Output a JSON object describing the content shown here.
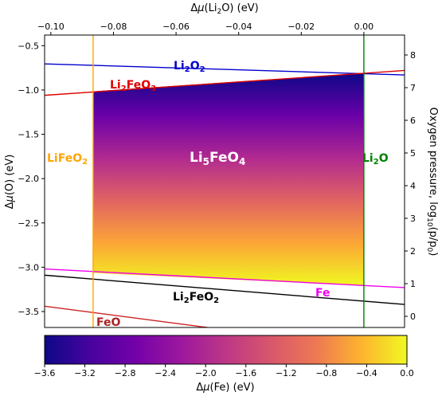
{
  "chart_data": {
    "type": "phase-diagram",
    "top_axis": {
      "label_parts": [
        "Δ",
        "μ",
        "(Li",
        "2",
        "O) (eV)"
      ],
      "xlim": [
        -0.102,
        0.013
      ],
      "ticks": [
        -0.1,
        -0.08,
        -0.06,
        -0.04,
        -0.02,
        0.0
      ],
      "tick_labels": [
        "−0.10",
        "−0.08",
        "−0.06",
        "−0.04",
        "−0.02",
        "0.00"
      ]
    },
    "left_axis": {
      "label_parts": [
        "Δ",
        "μ",
        "(O) (eV)"
      ],
      "ylim": [
        -3.68,
        -0.38
      ],
      "ticks": [
        -3.5,
        -3.0,
        -2.5,
        -2.0,
        -1.5,
        -1.0,
        -0.5
      ],
      "tick_labels": [
        "−3.5",
        "−3.0",
        "−2.5",
        "−2.0",
        "−1.5",
        "−1.0",
        "−0.5"
      ]
    },
    "right_axis": {
      "label_parts": [
        "Oxygen pressure, log",
        "10",
        "(p/p",
        "0",
        ")"
      ],
      "ticks": [
        0,
        1,
        2,
        3,
        4,
        5,
        6,
        7,
        8
      ],
      "tick_labels": [
        "0",
        "1",
        "2",
        "3",
        "4",
        "5",
        "6",
        "7",
        "8"
      ]
    },
    "colorbar": {
      "label_parts": [
        "Δ",
        "μ",
        "(Fe) (eV)"
      ],
      "range": [
        -3.6,
        0.0
      ],
      "ticks": [
        -3.6,
        -3.2,
        -2.8,
        -2.4,
        -2.0,
        -1.6,
        -1.2,
        -0.8,
        -0.4,
        0.0
      ],
      "tick_labels": [
        "−3.6",
        "−3.2",
        "−2.8",
        "−2.4",
        "−2.0",
        "−1.6",
        "−1.2",
        "−0.8",
        "−0.4",
        "0.0"
      ],
      "colormap": "plasma"
    },
    "stable_region": {
      "phase": "Li5FeO4",
      "polygon": [
        {
          "x": -0.0865,
          "y": -1.015
        },
        {
          "x": 0.0,
          "y": -0.81
        },
        {
          "x": 0.0,
          "y": -3.21
        },
        {
          "x": -0.0865,
          "y": -3.065
        }
      ]
    },
    "boundaries": [
      {
        "phase": "Li2O2",
        "color": "#0000cc",
        "x": [
          -0.102,
          0.013
        ],
        "y": [
          -0.705,
          -0.83
        ]
      },
      {
        "phase": "Li2FeO3",
        "color": "#dd0000",
        "x": [
          -0.102,
          0.013
        ],
        "y": [
          -1.06,
          -0.78
        ]
      },
      {
        "phase": "Fe",
        "color": "#ee00ee",
        "x": [
          -0.102,
          0.013
        ],
        "y": [
          -3.02,
          -3.23
        ]
      },
      {
        "phase": "Li2FeO2",
        "color": "#000000",
        "x": [
          -0.102,
          0.013
        ],
        "y": [
          -3.09,
          -3.42
        ]
      },
      {
        "phase": "FeO",
        "color": "#cc2222",
        "x": [
          -0.102,
          -0.05
        ],
        "y": [
          -3.44,
          -3.68
        ]
      },
      {
        "phase": "LiFeO2",
        "color": "#ffa500",
        "x": [
          -0.0865,
          -0.0865
        ],
        "y": [
          -3.68,
          -0.38
        ]
      },
      {
        "phase": "Li2O",
        "color": "#008000",
        "x": [
          0.0,
          0.0
        ],
        "y": [
          -3.68,
          -0.38
        ]
      }
    ],
    "labels": {
      "li2o2": {
        "parts": [
          "Li",
          "2",
          "O",
          "2"
        ],
        "color": "#0000cc"
      },
      "li2feo3": {
        "parts": [
          "Li",
          "2",
          "FeO",
          "3"
        ],
        "color": "#dd0000"
      },
      "lifeo2": {
        "parts": [
          "LiFeO",
          "2"
        ],
        "color": "#ffa500"
      },
      "li5feo4": {
        "parts": [
          "Li",
          "5",
          "FeO",
          "4"
        ],
        "color": "#ffffff"
      },
      "li2o": {
        "parts": [
          "Li",
          "2",
          "O"
        ],
        "color": "#008000"
      },
      "fe": {
        "parts": [
          "Fe"
        ],
        "color": "#ee00ee"
      },
      "li2feo2": {
        "parts": [
          "Li",
          "2",
          "FeO",
          "2"
        ],
        "color": "#000000"
      },
      "feo": {
        "parts": [
          "FeO"
        ],
        "color": "#aa2222"
      }
    }
  }
}
